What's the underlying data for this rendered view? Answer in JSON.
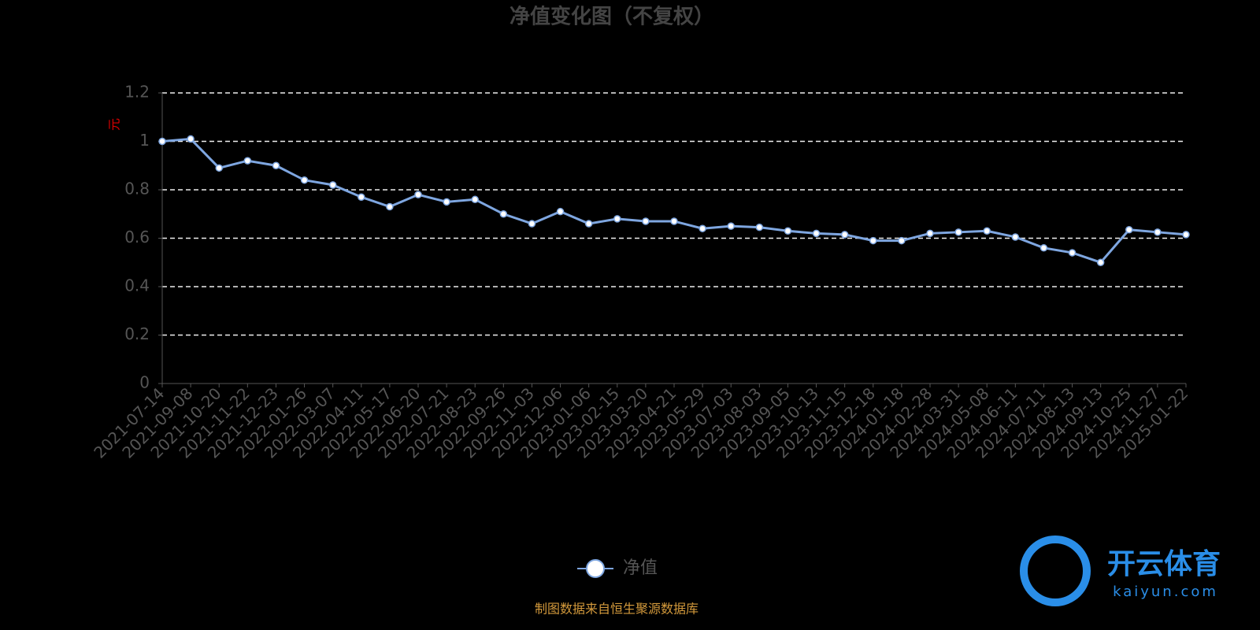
{
  "chart_data": {
    "type": "line",
    "title": "净值变化图（不复权）",
    "y_label": "元",
    "categories": [
      "2021-07-14",
      "2021-09-08",
      "2021-10-20",
      "2021-11-22",
      "2021-12-23",
      "2022-01-26",
      "2022-03-07",
      "2022-04-11",
      "2022-05-17",
      "2022-06-20",
      "2022-07-21",
      "2022-08-23",
      "2022-09-26",
      "2022-11-03",
      "2022-12-06",
      "2023-01-06",
      "2023-02-15",
      "2023-03-20",
      "2023-04-21",
      "2023-05-29",
      "2023-07-03",
      "2023-08-03",
      "2023-09-05",
      "2023-10-13",
      "2023-11-15",
      "2023-12-18",
      "2024-01-18",
      "2024-02-28",
      "2024-03-31",
      "2024-05-08",
      "2024-06-11",
      "2024-07-11",
      "2024-08-13",
      "2024-09-13",
      "2024-10-25",
      "2024-11-27",
      "2025-01-22"
    ],
    "series": [
      {
        "name": "净值",
        "color": "#7ea6e0",
        "values": [
          1.0,
          1.01,
          0.89,
          0.92,
          0.9,
          0.84,
          0.82,
          0.77,
          0.73,
          0.78,
          0.75,
          0.76,
          0.7,
          0.66,
          0.71,
          0.66,
          0.68,
          0.67,
          0.67,
          0.64,
          0.65,
          0.645,
          0.63,
          0.62,
          0.615,
          0.59,
          0.59,
          0.62,
          0.625,
          0.63,
          0.605,
          0.56,
          0.54,
          0.5,
          0.635,
          0.625,
          0.615
        ]
      }
    ],
    "ylim": [
      0,
      1.2
    ],
    "yticks": [
      0,
      0.2,
      0.4,
      0.6,
      0.8,
      1,
      1.2
    ],
    "grid": true,
    "legend": "bottom",
    "source": "制图数据来自恒生聚源数据库",
    "watermark": {
      "name": "开云体育",
      "url": "kaiyun.com"
    }
  }
}
